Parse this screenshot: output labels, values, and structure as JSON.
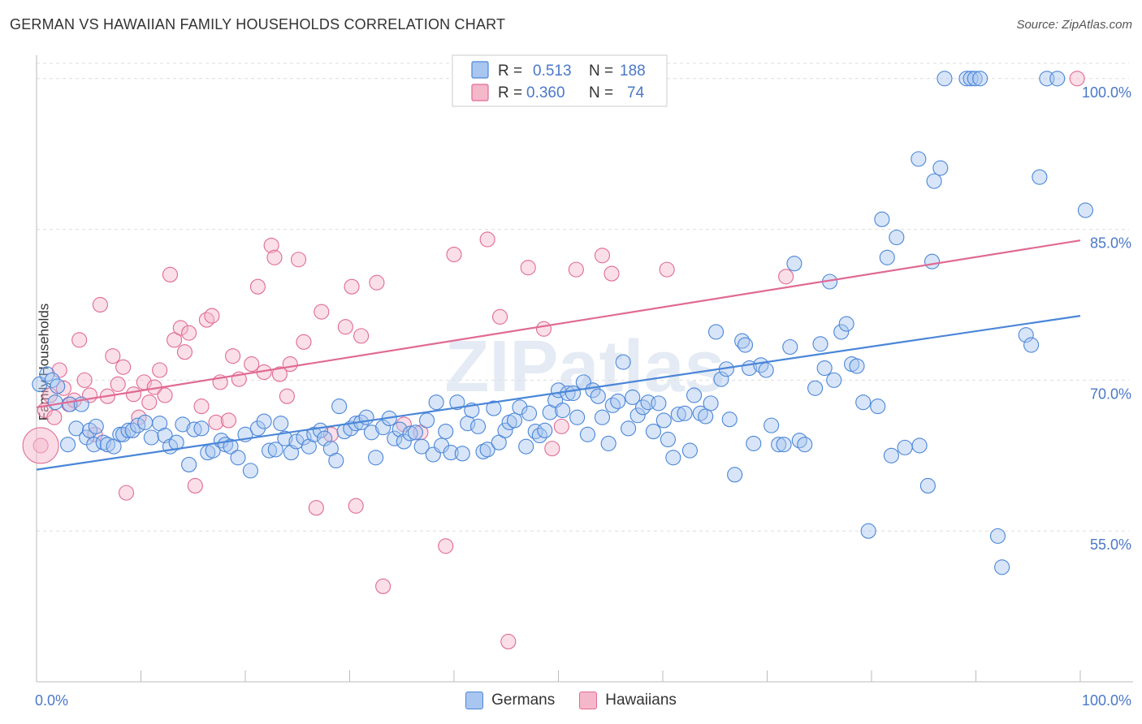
{
  "header": {
    "title": "GERMAN VS HAWAIIAN FAMILY HOUSEHOLDS CORRELATION CHART",
    "source": "Source: ZipAtlas.com"
  },
  "watermark": "ZIPatlas",
  "colors": {
    "germans": "#4a86d8",
    "germans_fill": "#a9c6f0",
    "hawaiians": "#e06a93",
    "hawaiians_fill": "#f5b8cb",
    "axis_text": "#4a78c8"
  },
  "legend": {
    "rows": [
      {
        "r_label": "R =",
        "r_value": "0.513",
        "n_label": "N =",
        "n_value": "188"
      },
      {
        "r_label": "R =",
        "r_value": "0.360",
        "n_label": "N =",
        "n_value": "74"
      }
    ]
  },
  "bottom_legend": {
    "germans": "Germans",
    "hawaiians": "Hawaiians"
  },
  "chart_data": {
    "type": "scatter",
    "title": "GERMAN VS HAWAIIAN FAMILY HOUSEHOLDS CORRELATION CHART",
    "xlabel": "",
    "ylabel": "Family Households",
    "xlim": [
      0,
      100
    ],
    "ylim": [
      40,
      102
    ],
    "x_tick_labels": [
      "0.0%",
      "100.0%"
    ],
    "y_ticks": [
      55,
      70,
      85,
      100
    ],
    "y_tick_labels": [
      "55.0%",
      "70.0%",
      "85.0%",
      "100.0%"
    ],
    "grid": true,
    "legend_position": "top-center",
    "series": [
      {
        "name": "Germans",
        "r": 0.513,
        "n": 188,
        "trend": {
          "x": [
            0,
            100
          ],
          "y": [
            61.1,
            76.4
          ]
        },
        "points": [
          [
            0.3,
            69.6
          ],
          [
            1.0,
            70.6
          ],
          [
            1.5,
            70.0
          ],
          [
            1.8,
            67.8
          ],
          [
            2.0,
            69.4
          ],
          [
            3.0,
            63.6
          ],
          [
            3.2,
            67.6
          ],
          [
            3.8,
            65.2
          ],
          [
            4.3,
            67.6
          ],
          [
            4.8,
            64.3
          ],
          [
            5.1,
            65.0
          ],
          [
            5.5,
            63.6
          ],
          [
            5.7,
            65.4
          ],
          [
            6.4,
            63.8
          ],
          [
            6.8,
            63.6
          ],
          [
            7.4,
            63.4
          ],
          [
            8.0,
            64.6
          ],
          [
            8.3,
            64.6
          ],
          [
            8.8,
            65.0
          ],
          [
            9.2,
            65.0
          ],
          [
            9.7,
            65.5
          ],
          [
            10.4,
            65.8
          ],
          [
            11.0,
            64.3
          ],
          [
            11.8,
            65.7
          ],
          [
            12.3,
            64.5
          ],
          [
            12.8,
            63.4
          ],
          [
            13.4,
            63.8
          ],
          [
            14.0,
            65.6
          ],
          [
            14.6,
            61.6
          ],
          [
            15.1,
            65.1
          ],
          [
            15.8,
            65.2
          ],
          [
            16.4,
            62.8
          ],
          [
            16.9,
            63.0
          ],
          [
            17.7,
            64.0
          ],
          [
            18.1,
            63.6
          ],
          [
            18.6,
            63.4
          ],
          [
            19.3,
            62.3
          ],
          [
            20.0,
            64.6
          ],
          [
            20.5,
            61.0
          ],
          [
            21.2,
            65.2
          ],
          [
            21.8,
            65.9
          ],
          [
            22.3,
            63.0
          ],
          [
            22.9,
            63.1
          ],
          [
            23.4,
            65.7
          ],
          [
            23.8,
            64.2
          ],
          [
            24.4,
            62.8
          ],
          [
            24.9,
            63.9
          ],
          [
            25.6,
            64.3
          ],
          [
            26.1,
            63.4
          ],
          [
            26.6,
            64.6
          ],
          [
            27.2,
            65.0
          ],
          [
            27.6,
            64.2
          ],
          [
            28.2,
            63.2
          ],
          [
            28.7,
            62.0
          ],
          [
            29.0,
            67.4
          ],
          [
            29.5,
            64.9
          ],
          [
            30.1,
            65.2
          ],
          [
            30.6,
            65.7
          ],
          [
            31.1,
            65.8
          ],
          [
            31.6,
            66.3
          ],
          [
            32.1,
            64.8
          ],
          [
            32.5,
            62.3
          ],
          [
            33.2,
            65.3
          ],
          [
            33.8,
            66.2
          ],
          [
            34.3,
            64.2
          ],
          [
            34.8,
            65.1
          ],
          [
            35.2,
            63.9
          ],
          [
            35.8,
            64.7
          ],
          [
            36.3,
            64.8
          ],
          [
            36.9,
            63.4
          ],
          [
            37.4,
            66.0
          ],
          [
            38.0,
            62.6
          ],
          [
            38.3,
            67.8
          ],
          [
            38.8,
            63.5
          ],
          [
            39.2,
            64.9
          ],
          [
            39.7,
            62.8
          ],
          [
            40.3,
            67.8
          ],
          [
            40.8,
            62.7
          ],
          [
            41.3,
            65.7
          ],
          [
            41.7,
            67.0
          ],
          [
            42.3,
            65.4
          ],
          [
            42.8,
            62.9
          ],
          [
            43.2,
            63.1
          ],
          [
            43.8,
            67.2
          ],
          [
            44.3,
            63.8
          ],
          [
            44.9,
            65.0
          ],
          [
            45.3,
            65.8
          ],
          [
            45.8,
            66.0
          ],
          [
            46.3,
            67.3
          ],
          [
            46.9,
            63.4
          ],
          [
            47.2,
            66.7
          ],
          [
            47.8,
            64.9
          ],
          [
            48.2,
            64.5
          ],
          [
            48.7,
            65.0
          ],
          [
            49.2,
            66.8
          ],
          [
            49.7,
            68.0
          ],
          [
            50.0,
            69.0
          ],
          [
            50.4,
            67.0
          ],
          [
            50.9,
            68.7
          ],
          [
            51.4,
            68.7
          ],
          [
            51.8,
            66.3
          ],
          [
            52.4,
            69.8
          ],
          [
            52.8,
            64.6
          ],
          [
            53.3,
            69.0
          ],
          [
            53.8,
            68.4
          ],
          [
            54.2,
            66.3
          ],
          [
            54.8,
            63.7
          ],
          [
            55.2,
            67.5
          ],
          [
            55.7,
            67.9
          ],
          [
            56.2,
            71.8
          ],
          [
            56.7,
            65.2
          ],
          [
            57.1,
            68.3
          ],
          [
            57.6,
            66.5
          ],
          [
            58.1,
            67.3
          ],
          [
            58.6,
            67.8
          ],
          [
            59.1,
            64.9
          ],
          [
            59.6,
            67.7
          ],
          [
            60.1,
            66.0
          ],
          [
            60.5,
            64.1
          ],
          [
            61.0,
            62.3
          ],
          [
            61.5,
            66.6
          ],
          [
            62.1,
            66.7
          ],
          [
            62.6,
            63.0
          ],
          [
            63.0,
            68.5
          ],
          [
            63.6,
            66.7
          ],
          [
            64.1,
            66.4
          ],
          [
            64.6,
            67.7
          ],
          [
            65.1,
            74.8
          ],
          [
            65.6,
            70.1
          ],
          [
            66.1,
            71.1
          ],
          [
            66.4,
            66.1
          ],
          [
            66.9,
            60.6
          ],
          [
            67.6,
            73.9
          ],
          [
            67.9,
            73.5
          ],
          [
            68.3,
            71.2
          ],
          [
            68.7,
            63.7
          ],
          [
            69.4,
            71.5
          ],
          [
            69.9,
            71.0
          ],
          [
            70.4,
            65.5
          ],
          [
            71.1,
            63.6
          ],
          [
            71.6,
            63.6
          ],
          [
            72.2,
            73.3
          ],
          [
            72.6,
            81.6
          ],
          [
            73.1,
            64.0
          ],
          [
            73.6,
            63.6
          ],
          [
            74.6,
            69.2
          ],
          [
            75.1,
            73.6
          ],
          [
            75.5,
            71.2
          ],
          [
            76.0,
            79.8
          ],
          [
            76.4,
            70.0
          ],
          [
            77.1,
            74.8
          ],
          [
            77.6,
            75.6
          ],
          [
            78.1,
            71.6
          ],
          [
            78.6,
            71.4
          ],
          [
            79.2,
            67.8
          ],
          [
            79.7,
            55.0
          ],
          [
            80.6,
            67.4
          ],
          [
            81.0,
            86.0
          ],
          [
            81.5,
            82.2
          ],
          [
            81.9,
            62.5
          ],
          [
            82.4,
            84.2
          ],
          [
            83.2,
            63.3
          ],
          [
            84.5,
            92.0
          ],
          [
            84.6,
            63.5
          ],
          [
            85.4,
            59.5
          ],
          [
            85.8,
            81.8
          ],
          [
            86.0,
            89.8
          ],
          [
            86.6,
            91.1
          ],
          [
            87.0,
            100.0
          ],
          [
            89.1,
            100.0
          ],
          [
            89.5,
            100.0
          ],
          [
            89.9,
            100.0
          ],
          [
            90.4,
            100.0
          ],
          [
            92.1,
            54.5
          ],
          [
            92.5,
            51.4
          ],
          [
            94.8,
            74.5
          ],
          [
            95.3,
            73.5
          ],
          [
            96.1,
            90.2
          ],
          [
            96.8,
            100.0
          ],
          [
            97.8,
            100.0
          ],
          [
            100.5,
            86.9
          ]
        ]
      },
      {
        "name": "Hawaiians",
        "r": 0.36,
        "n": 74,
        "trend": {
          "x": [
            0,
            100
          ],
          "y": [
            67.3,
            83.9
          ]
        },
        "points": [
          [
            0.4,
            63.5
          ],
          [
            0.8,
            67.0
          ],
          [
            1.3,
            68.5
          ],
          [
            1.7,
            66.3
          ],
          [
            2.2,
            71.0
          ],
          [
            2.6,
            69.2
          ],
          [
            3.1,
            67.6
          ],
          [
            3.6,
            68.0
          ],
          [
            4.1,
            74.0
          ],
          [
            4.6,
            70.0
          ],
          [
            5.1,
            68.5
          ],
          [
            5.6,
            64.6
          ],
          [
            6.1,
            77.5
          ],
          [
            6.8,
            68.4
          ],
          [
            7.3,
            72.4
          ],
          [
            7.8,
            69.6
          ],
          [
            8.3,
            71.3
          ],
          [
            8.6,
            58.8
          ],
          [
            9.3,
            68.6
          ],
          [
            9.8,
            66.3
          ],
          [
            10.3,
            69.8
          ],
          [
            10.8,
            67.8
          ],
          [
            11.3,
            69.3
          ],
          [
            11.8,
            71.0
          ],
          [
            12.3,
            68.5
          ],
          [
            12.8,
            80.5
          ],
          [
            13.2,
            74.0
          ],
          [
            13.8,
            75.2
          ],
          [
            14.2,
            72.8
          ],
          [
            14.6,
            74.7
          ],
          [
            15.2,
            59.5
          ],
          [
            15.8,
            67.4
          ],
          [
            16.3,
            76.0
          ],
          [
            16.8,
            76.4
          ],
          [
            17.2,
            65.8
          ],
          [
            17.6,
            69.8
          ],
          [
            18.4,
            66.0
          ],
          [
            18.8,
            72.4
          ],
          [
            19.4,
            70.1
          ],
          [
            20.6,
            71.6
          ],
          [
            21.2,
            79.3
          ],
          [
            21.8,
            70.8
          ],
          [
            22.5,
            83.4
          ],
          [
            22.8,
            82.2
          ],
          [
            23.3,
            70.6
          ],
          [
            24.0,
            68.4
          ],
          [
            24.3,
            71.6
          ],
          [
            25.1,
            82.0
          ],
          [
            25.6,
            73.8
          ],
          [
            26.8,
            57.3
          ],
          [
            27.3,
            76.8
          ],
          [
            28.2,
            64.6
          ],
          [
            29.6,
            75.3
          ],
          [
            30.2,
            79.3
          ],
          [
            30.6,
            57.5
          ],
          [
            31.1,
            74.4
          ],
          [
            32.6,
            79.7
          ],
          [
            33.2,
            49.5
          ],
          [
            35.2,
            65.6
          ],
          [
            36.8,
            64.8
          ],
          [
            39.2,
            53.5
          ],
          [
            40.0,
            82.5
          ],
          [
            43.2,
            84.0
          ],
          [
            44.4,
            76.3
          ],
          [
            45.2,
            44.0
          ],
          [
            47.1,
            81.2
          ],
          [
            48.6,
            75.1
          ],
          [
            49.4,
            63.2
          ],
          [
            50.3,
            65.4
          ],
          [
            51.7,
            81.0
          ],
          [
            54.2,
            82.4
          ],
          [
            55.1,
            80.6
          ],
          [
            60.4,
            81.0
          ],
          [
            71.8,
            80.3
          ],
          [
            99.7,
            100.0
          ]
        ]
      }
    ]
  }
}
